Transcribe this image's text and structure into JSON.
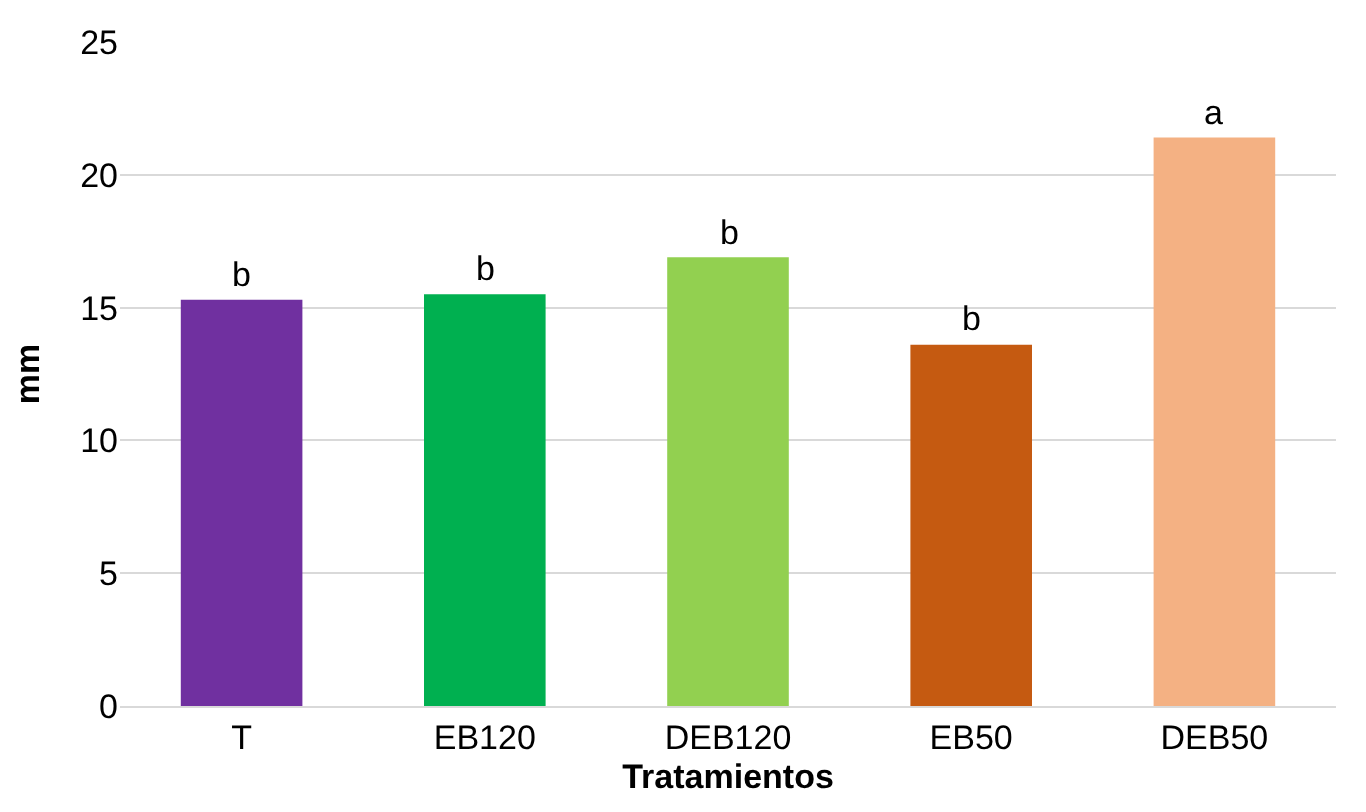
{
  "chart_data": {
    "type": "bar",
    "xlabel": "Tratamientos",
    "ylabel": "mm",
    "categories": [
      "T",
      "EB120",
      "DEB120",
      "EB50",
      "DEB50"
    ],
    "values": [
      15.3,
      15.5,
      16.9,
      13.6,
      21.4
    ],
    "colors": [
      "#7030a0",
      "#00b050",
      "#92d050",
      "#c55a11",
      "#f4b183"
    ],
    "ylim": [
      0,
      25
    ],
    "yticks": [
      0,
      5,
      10,
      15,
      20,
      25
    ],
    "grid": "y",
    "annotations": [
      {
        "text": "b",
        "x": "T",
        "y": 15.3
      },
      {
        "text": "b",
        "x": "EB120",
        "y": 15.5
      },
      {
        "text": "b",
        "x": "DEB120",
        "y": 16.9
      },
      {
        "text": "b",
        "x": "EB50",
        "y": 13.6
      },
      {
        "text": "a",
        "x": "DEB50",
        "y": 21.4
      }
    ]
  }
}
